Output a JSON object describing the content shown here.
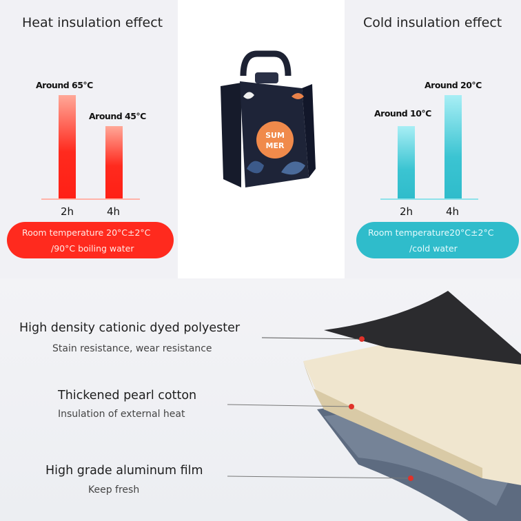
{
  "heat": {
    "title": "Heat insulation effect",
    "bars": [
      {
        "x": "2h",
        "value": 65,
        "label": "Around 65°C"
      },
      {
        "x": "4h",
        "value": 45,
        "label": "Around 45°C"
      }
    ],
    "note_line1": "Room temperature 20°C±2°C",
    "note_line2": "/90°C boiling water",
    "color": "#ff2a1e"
  },
  "cold": {
    "title": "Cold insulation effect",
    "bars": [
      {
        "x": "2h",
        "value": 10,
        "label": "Around 10°C"
      },
      {
        "x": "4h",
        "value": 20,
        "label": "Around 20°C"
      }
    ],
    "note_line1": "Room temperature20°C±2°C",
    "note_line2": "/cold water",
    "color": "#2fbccb"
  },
  "bag": {
    "logo_line1": "SUM",
    "logo_line2": "MER"
  },
  "layers": [
    {
      "title": "High density cationic dyed polyester",
      "subtitle": "Stain resistance, wear resistance"
    },
    {
      "title": "Thickened pearl cotton",
      "subtitle": "Insulation of external heat"
    },
    {
      "title": "High grade aluminum film",
      "subtitle": "Keep fresh"
    }
  ]
}
